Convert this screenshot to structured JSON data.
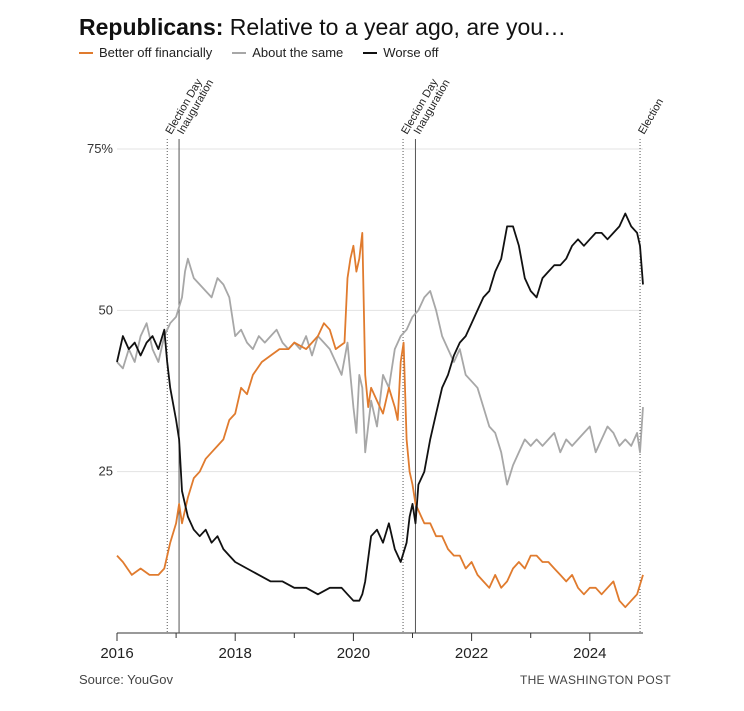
{
  "title_bold": "Republicans:",
  "title_rest": " Relative to a year ago, are you…",
  "source": "Source: YouGov",
  "credit": "THE WASHINGTON POST",
  "colors": {
    "better": "#e07b2e",
    "same": "#a7a7a7",
    "worse": "#111111",
    "grid": "#e3e3e3"
  },
  "chart_data": {
    "type": "line",
    "title": "Republicans: Relative to a year ago, are you…",
    "xlabel": "",
    "ylabel": "",
    "xlim": [
      2016,
      2024.9
    ],
    "ylim": [
      0,
      75
    ],
    "y_ticks": [
      {
        "v": 75,
        "label": "75%"
      },
      {
        "v": 50,
        "label": "50"
      },
      {
        "v": 25,
        "label": "25"
      }
    ],
    "x_ticks": [
      {
        "v": 2016,
        "label": "2016"
      },
      {
        "v": 2018,
        "label": "2018"
      },
      {
        "v": 2020,
        "label": "2020"
      },
      {
        "v": 2022,
        "label": "2022"
      },
      {
        "v": 2024,
        "label": "2024"
      }
    ],
    "x_minor_ticks": [
      2017,
      2019,
      2021,
      2023
    ],
    "events": [
      {
        "x": 2016.85,
        "label": "Election Day",
        "style": "dotted"
      },
      {
        "x": 2017.05,
        "label": "Inauguration",
        "style": "solid"
      },
      {
        "x": 2020.84,
        "label": "Election Day",
        "style": "dotted"
      },
      {
        "x": 2021.05,
        "label": "Inauguration",
        "style": "solid"
      },
      {
        "x": 2024.85,
        "label": "Election",
        "style": "dotted"
      }
    ],
    "series": [
      {
        "name": "Better off financially",
        "key": "better",
        "x": [
          2016.0,
          2016.1,
          2016.25,
          2016.4,
          2016.55,
          2016.7,
          2016.8,
          2016.9,
          2017.0,
          2017.05,
          2017.1,
          2017.2,
          2017.3,
          2017.4,
          2017.5,
          2017.6,
          2017.7,
          2017.8,
          2017.9,
          2018.0,
          2018.1,
          2018.2,
          2018.3,
          2018.45,
          2018.6,
          2018.75,
          2018.9,
          2019.0,
          2019.2,
          2019.4,
          2019.5,
          2019.6,
          2019.7,
          2019.85,
          2019.9,
          2019.95,
          2020.0,
          2020.05,
          2020.1,
          2020.15,
          2020.2,
          2020.25,
          2020.3,
          2020.4,
          2020.5,
          2020.6,
          2020.7,
          2020.75,
          2020.8,
          2020.85,
          2020.9,
          2020.95,
          2021.0,
          2021.05,
          2021.1,
          2021.2,
          2021.3,
          2021.4,
          2021.5,
          2021.6,
          2021.7,
          2021.8,
          2021.9,
          2022.0,
          2022.1,
          2022.2,
          2022.3,
          2022.4,
          2022.5,
          2022.6,
          2022.7,
          2022.8,
          2022.9,
          2023.0,
          2023.1,
          2023.2,
          2023.3,
          2023.4,
          2023.5,
          2023.6,
          2023.7,
          2023.8,
          2023.9,
          2024.0,
          2024.1,
          2024.2,
          2024.3,
          2024.4,
          2024.5,
          2024.6,
          2024.7,
          2024.8,
          2024.9
        ],
        "values": [
          12,
          11,
          9,
          10,
          9,
          9,
          10,
          14,
          17,
          20,
          17,
          21,
          24,
          25,
          27,
          28,
          29,
          30,
          33,
          34,
          38,
          37,
          40,
          42,
          43,
          44,
          44,
          45,
          44,
          46,
          48,
          47,
          44,
          45,
          55,
          58,
          60,
          56,
          58,
          62,
          40,
          35,
          38,
          36,
          34,
          38,
          35,
          33,
          42,
          45,
          30,
          25,
          23,
          20,
          19,
          17,
          17,
          15,
          15,
          13,
          12,
          12,
          10,
          11,
          9,
          8,
          7,
          9,
          7,
          8,
          10,
          11,
          10,
          12,
          12,
          11,
          11,
          10,
          9,
          8,
          9,
          7,
          6,
          7,
          7,
          6,
          7,
          8,
          5,
          4,
          5,
          6,
          9
        ]
      },
      {
        "name": "About the same",
        "key": "same",
        "x": [
          2016.0,
          2016.1,
          2016.2,
          2016.3,
          2016.4,
          2016.5,
          2016.6,
          2016.7,
          2016.8,
          2016.9,
          2017.0,
          2017.1,
          2017.15,
          2017.2,
          2017.3,
          2017.4,
          2017.5,
          2017.6,
          2017.7,
          2017.8,
          2017.9,
          2018.0,
          2018.1,
          2018.2,
          2018.3,
          2018.4,
          2018.5,
          2018.6,
          2018.7,
          2018.8,
          2018.9,
          2019.0,
          2019.1,
          2019.2,
          2019.3,
          2019.4,
          2019.5,
          2019.6,
          2019.7,
          2019.8,
          2019.9,
          2019.95,
          2020.0,
          2020.05,
          2020.1,
          2020.15,
          2020.2,
          2020.3,
          2020.4,
          2020.5,
          2020.6,
          2020.7,
          2020.8,
          2020.9,
          2021.0,
          2021.1,
          2021.2,
          2021.3,
          2021.4,
          2021.5,
          2021.6,
          2021.7,
          2021.8,
          2021.9,
          2022.0,
          2022.1,
          2022.2,
          2022.3,
          2022.4,
          2022.5,
          2022.6,
          2022.7,
          2022.8,
          2022.9,
          2023.0,
          2023.1,
          2023.2,
          2023.3,
          2023.4,
          2023.5,
          2023.6,
          2023.7,
          2023.8,
          2023.9,
          2024.0,
          2024.1,
          2024.2,
          2024.3,
          2024.4,
          2024.5,
          2024.6,
          2024.7,
          2024.8,
          2024.85,
          2024.9
        ],
        "values": [
          42,
          41,
          44,
          42,
          46,
          48,
          44,
          42,
          46,
          48,
          49,
          52,
          56,
          58,
          55,
          54,
          53,
          52,
          55,
          54,
          52,
          46,
          47,
          45,
          44,
          46,
          45,
          46,
          47,
          45,
          44,
          45,
          44,
          46,
          43,
          46,
          45,
          44,
          42,
          40,
          45,
          40,
          35,
          31,
          40,
          38,
          28,
          36,
          32,
          40,
          38,
          44,
          46,
          47,
          49,
          50,
          52,
          53,
          50,
          46,
          44,
          42,
          44,
          40,
          39,
          38,
          35,
          32,
          31,
          28,
          23,
          26,
          28,
          30,
          29,
          30,
          29,
          30,
          31,
          28,
          30,
          29,
          30,
          31,
          32,
          28,
          30,
          32,
          31,
          29,
          30,
          29,
          31,
          28,
          35
        ]
      },
      {
        "name": "Worse off",
        "key": "worse",
        "x": [
          2016.0,
          2016.1,
          2016.2,
          2016.3,
          2016.4,
          2016.5,
          2016.6,
          2016.7,
          2016.8,
          2016.85,
          2016.9,
          2017.0,
          2017.05,
          2017.1,
          2017.2,
          2017.3,
          2017.4,
          2017.5,
          2017.6,
          2017.7,
          2017.8,
          2017.9,
          2018.0,
          2018.2,
          2018.4,
          2018.6,
          2018.8,
          2019.0,
          2019.2,
          2019.4,
          2019.6,
          2019.8,
          2019.9,
          2020.0,
          2020.1,
          2020.15,
          2020.2,
          2020.3,
          2020.4,
          2020.5,
          2020.6,
          2020.7,
          2020.8,
          2020.9,
          2020.95,
          2021.0,
          2021.05,
          2021.1,
          2021.2,
          2021.3,
          2021.4,
          2021.5,
          2021.6,
          2021.7,
          2021.8,
          2021.9,
          2022.0,
          2022.1,
          2022.2,
          2022.3,
          2022.4,
          2022.5,
          2022.6,
          2022.7,
          2022.8,
          2022.9,
          2023.0,
          2023.1,
          2023.2,
          2023.3,
          2023.4,
          2023.5,
          2023.6,
          2023.7,
          2023.8,
          2023.9,
          2024.0,
          2024.1,
          2024.2,
          2024.3,
          2024.4,
          2024.5,
          2024.6,
          2024.7,
          2024.8,
          2024.85,
          2024.9
        ],
        "values": [
          42,
          46,
          44,
          45,
          43,
          45,
          46,
          44,
          47,
          42,
          38,
          33,
          30,
          22,
          18,
          16,
          15,
          16,
          14,
          15,
          13,
          12,
          11,
          10,
          9,
          8,
          8,
          7,
          7,
          6,
          7,
          7,
          6,
          5,
          5,
          6,
          8,
          15,
          16,
          14,
          17,
          13,
          11,
          14,
          18,
          20,
          17,
          23,
          25,
          30,
          34,
          38,
          40,
          43,
          45,
          46,
          48,
          50,
          52,
          53,
          56,
          58,
          63,
          63,
          60,
          55,
          53,
          52,
          55,
          56,
          57,
          57,
          58,
          60,
          61,
          60,
          61,
          62,
          62,
          61,
          62,
          63,
          65,
          63,
          62,
          60,
          54
        ]
      }
    ]
  }
}
